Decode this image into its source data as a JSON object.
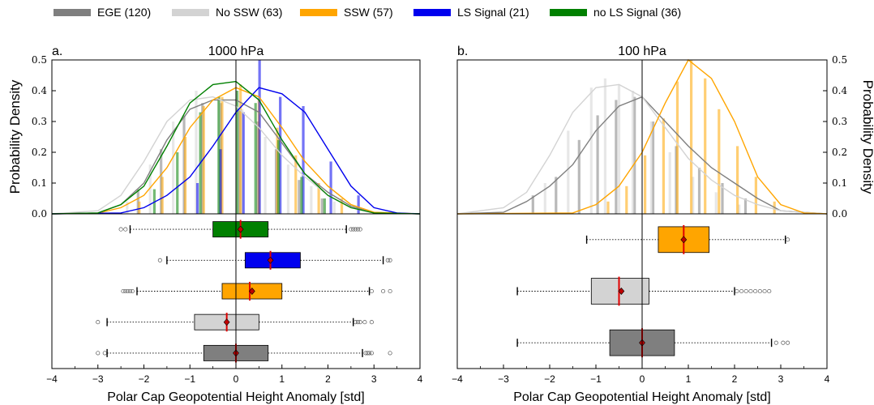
{
  "legend": [
    {
      "label": "EGE (120)",
      "color": "#7f7f7f"
    },
    {
      "label": "No SSW (63)",
      "color": "#d3d3d3"
    },
    {
      "label": "SSW (57)",
      "color": "#ffa500"
    },
    {
      "label": "LS Signal (21)",
      "color": "#0000ee"
    },
    {
      "label": "no LS Signal (36)",
      "color": "#008000"
    }
  ],
  "chart_data": [
    {
      "type": "histogram_density_boxplot",
      "panel_letter": "a.",
      "title": "1000 hPa",
      "xlabel": "Polar Cap Geopotential Height Anomaly [std]",
      "ylabel": "Probability Density",
      "xlim": [
        -4,
        4
      ],
      "ylim": [
        0,
        0.5
      ],
      "xticks": [
        "−4",
        "−3",
        "−2",
        "−1",
        "0",
        "1",
        "2",
        "3",
        "4"
      ],
      "yticks": [
        "0.0",
        "0.1",
        "0.2",
        "0.3",
        "0.4",
        "0.5"
      ],
      "y_axis_side": "left",
      "series": [
        {
          "name": "EGE (120)",
          "color": "#7f7f7f",
          "kde_x": [
            -3.0,
            -2.5,
            -2.0,
            -1.5,
            -1.0,
            -0.5,
            0.0,
            0.5,
            1.0,
            1.5,
            2.0,
            2.5,
            3.0
          ],
          "kde_y": [
            0.003,
            0.03,
            0.1,
            0.24,
            0.34,
            0.37,
            0.37,
            0.33,
            0.23,
            0.13,
            0.07,
            0.025,
            0.003
          ],
          "hist_x": [
            -2.0,
            -1.5,
            -1.0,
            -0.6,
            -0.2,
            0.2,
            0.6,
            1.0,
            1.5,
            2.0
          ],
          "hist_y": [
            0.08,
            0.21,
            0.32,
            0.36,
            0.36,
            0.34,
            0.3,
            0.21,
            0.11,
            0.05
          ],
          "box": {
            "whisker_low": -2.8,
            "q1": -0.7,
            "median": 0.0,
            "mean": 0.0,
            "q3": 0.7,
            "whisker_high": 2.75,
            "outliers": [
              -3.0,
              -2.85,
              2.82,
              2.86,
              2.9,
              2.95,
              3.35
            ]
          }
        },
        {
          "name": "No SSW (63)",
          "color": "#d3d3d3",
          "kde_x": [
            -3.0,
            -2.5,
            -2.0,
            -1.5,
            -1.0,
            -0.5,
            0.0,
            0.5,
            1.0,
            1.5,
            2.0,
            2.5,
            3.0
          ],
          "kde_y": [
            0.01,
            0.06,
            0.17,
            0.3,
            0.37,
            0.38,
            0.35,
            0.28,
            0.19,
            0.12,
            0.06,
            0.02,
            0.003
          ],
          "hist_x": [
            -2.3,
            -1.8,
            -1.3,
            -0.8,
            -0.3,
            0.2,
            0.7,
            1.2,
            1.7,
            2.2
          ],
          "hist_y": [
            0.04,
            0.16,
            0.3,
            0.4,
            0.38,
            0.34,
            0.25,
            0.16,
            0.09,
            0.04
          ],
          "box": {
            "whisker_low": -2.8,
            "q1": -0.9,
            "median": -0.2,
            "mean": -0.2,
            "q3": 0.5,
            "whisker_high": 2.55,
            "outliers": [
              -3.0,
              2.6,
              2.65,
              2.7,
              2.8,
              2.95
            ]
          }
        },
        {
          "name": "SSW (57)",
          "color": "#ffa500",
          "kde_x": [
            -3.0,
            -2.5,
            -2.0,
            -1.5,
            -1.0,
            -0.5,
            0.0,
            0.5,
            1.0,
            1.5,
            2.0,
            2.5,
            3.0
          ],
          "kde_y": [
            0.002,
            0.02,
            0.06,
            0.15,
            0.28,
            0.37,
            0.41,
            0.38,
            0.28,
            0.17,
            0.09,
            0.03,
            0.005
          ],
          "hist_x": [
            -2.1,
            -1.6,
            -1.1,
            -0.7,
            -0.3,
            0.1,
            0.5,
            0.9,
            1.3,
            1.8,
            2.3
          ],
          "hist_y": [
            0.04,
            0.12,
            0.25,
            0.35,
            0.38,
            0.42,
            0.37,
            0.28,
            0.19,
            0.1,
            0.05
          ],
          "box": {
            "whisker_low": -2.15,
            "q1": -0.3,
            "median": 0.3,
            "mean": 0.35,
            "q3": 1.0,
            "whisker_high": 2.9,
            "outliers": [
              -2.45,
              -2.4,
              -2.35,
              -2.3,
              -2.25,
              2.95,
              3.2,
              3.35
            ]
          }
        },
        {
          "name": "LS Signal (21)",
          "color": "#0000ee",
          "kde_x": [
            -2.5,
            -2.0,
            -1.5,
            -1.0,
            -0.5,
            0.0,
            0.5,
            1.0,
            1.5,
            2.0,
            2.5,
            3.0,
            3.5
          ],
          "kde_y": [
            0.003,
            0.02,
            0.06,
            0.12,
            0.22,
            0.33,
            0.41,
            0.39,
            0.33,
            0.21,
            0.09,
            0.02,
            0.003
          ],
          "hist_x": [
            -0.9,
            -0.4,
            0.1,
            0.45,
            0.9,
            1.4,
            2.0,
            2.6
          ],
          "hist_y": [
            0.1,
            0.21,
            0.33,
            0.5,
            0.38,
            0.35,
            0.17,
            0.06
          ],
          "box": {
            "whisker_low": -1.5,
            "q1": 0.2,
            "median": 0.75,
            "mean": 0.75,
            "q3": 1.4,
            "whisker_high": 3.2,
            "outliers": [
              -1.65,
              3.3,
              3.35
            ]
          }
        },
        {
          "name": "no LS Signal (36)",
          "color": "#008000",
          "kde_x": [
            -3.0,
            -2.5,
            -2.0,
            -1.5,
            -1.0,
            -0.5,
            0.0,
            0.5,
            1.0,
            1.5,
            2.0,
            2.5,
            3.0
          ],
          "kde_y": [
            0.003,
            0.03,
            0.09,
            0.22,
            0.36,
            0.42,
            0.43,
            0.37,
            0.24,
            0.13,
            0.06,
            0.02,
            0.003
          ],
          "hist_x": [
            -1.9,
            -1.4,
            -0.9,
            -0.5,
            -0.1,
            0.3,
            0.8,
            1.3,
            1.8
          ],
          "hist_y": [
            0.08,
            0.2,
            0.33,
            0.38,
            0.4,
            0.36,
            0.24,
            0.12,
            0.05
          ],
          "box": {
            "whisker_low": -2.3,
            "q1": -0.5,
            "median": 0.1,
            "mean": 0.1,
            "q3": 0.7,
            "whisker_high": 2.4,
            "outliers": [
              -2.5,
              -2.4,
              2.5,
              2.55,
              2.6,
              2.65,
              2.7
            ]
          }
        }
      ]
    },
    {
      "type": "histogram_density_boxplot",
      "panel_letter": "b.",
      "title": "100 hPa",
      "xlabel": "Polar Cap Geopotential Height Anomaly [std]",
      "ylabel": "Probability Density",
      "xlim": [
        -4,
        4
      ],
      "ylim": [
        0,
        0.5
      ],
      "xticks": [
        "−4",
        "−3",
        "−2",
        "−1",
        "0",
        "1",
        "2",
        "3",
        "4"
      ],
      "yticks": [
        "0.0",
        "0.1",
        "0.2",
        "0.3",
        "0.4",
        "0.5"
      ],
      "y_axis_side": "right",
      "series": [
        {
          "name": "EGE (120)",
          "color": "#7f7f7f",
          "kde_x": [
            -3.0,
            -2.5,
            -2.0,
            -1.5,
            -1.0,
            -0.5,
            0.0,
            0.5,
            1.0,
            1.5,
            2.0,
            2.5,
            3.0
          ],
          "kde_y": [
            0.005,
            0.04,
            0.09,
            0.16,
            0.27,
            0.35,
            0.38,
            0.3,
            0.22,
            0.15,
            0.1,
            0.05,
            0.01
          ],
          "hist_x": [
            -2.3,
            -1.8,
            -1.3,
            -0.9,
            -0.5,
            -0.1,
            0.3,
            0.8,
            1.3,
            1.8,
            2.3
          ],
          "hist_y": [
            0.06,
            0.12,
            0.24,
            0.32,
            0.37,
            0.38,
            0.3,
            0.22,
            0.15,
            0.1,
            0.05
          ],
          "box": {
            "whisker_low": -2.7,
            "q1": -0.7,
            "median": 0.0,
            "mean": 0.0,
            "q3": 0.7,
            "whisker_high": 2.8,
            "outliers": [
              2.9,
              3.05,
              3.15
            ]
          }
        },
        {
          "name": "No SSW (63)",
          "color": "#d3d3d3",
          "kde_x": [
            -3.0,
            -2.5,
            -2.0,
            -1.5,
            -1.0,
            -0.5,
            0.0,
            0.5,
            1.0,
            1.5,
            2.0,
            2.5,
            3.0
          ],
          "kde_y": [
            0.02,
            0.07,
            0.19,
            0.33,
            0.41,
            0.42,
            0.38,
            0.28,
            0.18,
            0.11,
            0.06,
            0.03,
            0.01
          ],
          "hist_x": [
            -2.1,
            -1.6,
            -1.1,
            -0.8,
            -0.5,
            -0.2,
            0.2,
            0.6,
            1.1,
            1.6,
            2.1
          ],
          "hist_y": [
            0.1,
            0.27,
            0.41,
            0.44,
            0.42,
            0.4,
            0.3,
            0.2,
            0.12,
            0.07,
            0.03
          ],
          "box": {
            "whisker_low": -2.7,
            "q1": -1.1,
            "median": -0.5,
            "mean": -0.45,
            "q3": 0.15,
            "whisker_high": 2.0,
            "outliers": [
              2.05,
              2.15,
              2.25,
              2.35,
              2.45,
              2.55,
              2.65,
              2.75
            ]
          }
        },
        {
          "name": "SSW (57)",
          "color": "#ffa500",
          "kde_x": [
            -1.5,
            -1.0,
            -0.5,
            0.0,
            0.5,
            1.0,
            1.5,
            2.0,
            2.5,
            3.0,
            3.5
          ],
          "kde_y": [
            0.003,
            0.03,
            0.09,
            0.2,
            0.36,
            0.5,
            0.44,
            0.3,
            0.12,
            0.03,
            0.003
          ],
          "hist_x": [
            -0.8,
            -0.4,
            0.0,
            0.4,
            0.7,
            1.0,
            1.3,
            1.6,
            2.0,
            2.4,
            2.8
          ],
          "hist_y": [
            0.04,
            0.09,
            0.19,
            0.31,
            0.43,
            0.5,
            0.44,
            0.34,
            0.22,
            0.12,
            0.04
          ],
          "box": {
            "whisker_low": -1.2,
            "q1": 0.35,
            "median": 0.9,
            "mean": 0.9,
            "q3": 1.45,
            "whisker_high": 3.1,
            "outliers": [
              3.15
            ]
          }
        }
      ]
    }
  ]
}
